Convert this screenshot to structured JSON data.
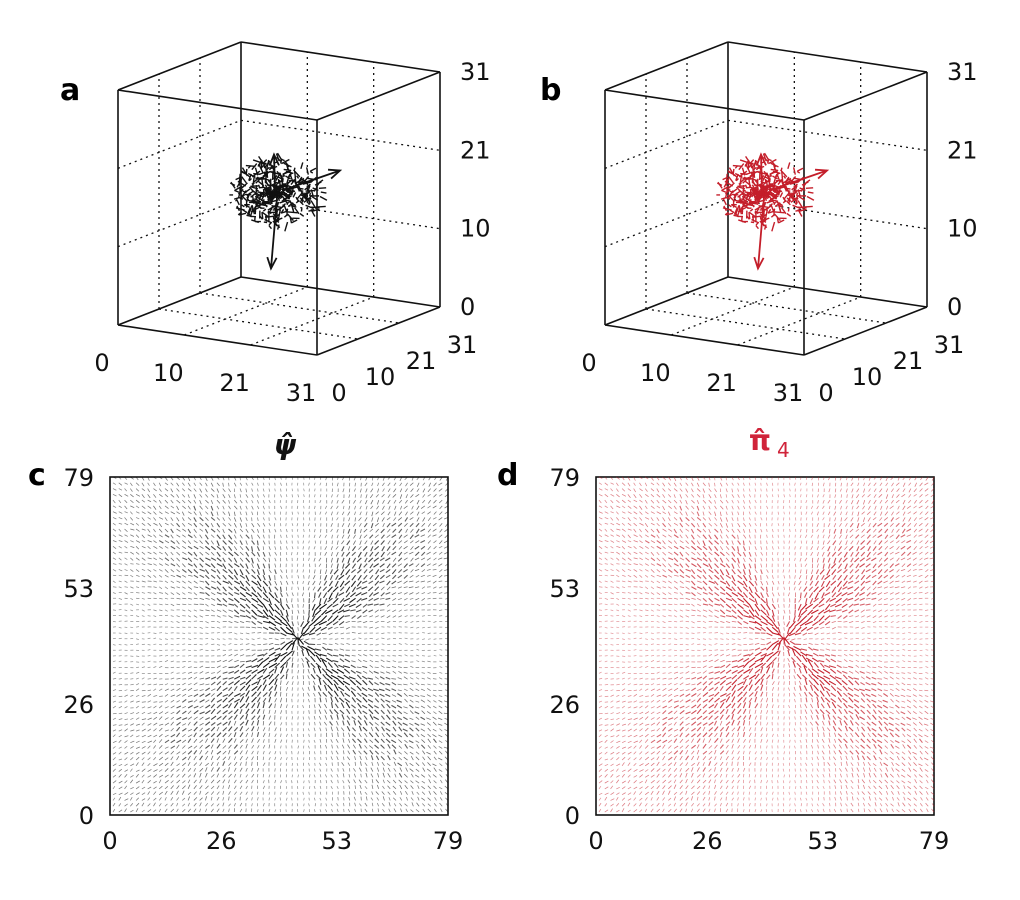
{
  "colors": {
    "black_field": "#111111",
    "red_field": "#c41e2a",
    "caption_red": "#d0243a"
  },
  "chart_data": [
    {
      "panel": "a",
      "type": "scatter",
      "projection": "3d",
      "series_color": "#111111",
      "axes": {
        "x": {
          "range": [
            0,
            31
          ],
          "ticks": [
            "0",
            "10",
            "21",
            "31"
          ]
        },
        "y": {
          "range": [
            0,
            31
          ],
          "ticks": [
            "0",
            "10",
            "21",
            "31"
          ]
        },
        "z": {
          "range": [
            0,
            31
          ],
          "ticks": [
            "0",
            "10",
            "21",
            "31"
          ]
        }
      },
      "grid": true,
      "data_description_values": {
        "cluster_center": [
          15.5,
          15.5,
          15.5
        ],
        "cluster_extent": 4
      }
    },
    {
      "panel": "b",
      "type": "scatter",
      "projection": "3d",
      "series_color": "#c41e2a",
      "axes": {
        "x": {
          "range": [
            0,
            31
          ],
          "ticks": [
            "0",
            "10",
            "21",
            "31"
          ]
        },
        "y": {
          "range": [
            0,
            31
          ],
          "ticks": [
            "0",
            "10",
            "21",
            "31"
          ]
        },
        "z": {
          "range": [
            0,
            31
          ],
          "ticks": [
            "0",
            "10",
            "21",
            "31"
          ]
        }
      },
      "grid": true,
      "data_description_values": {
        "cluster_center": [
          15.5,
          15.5,
          15.5
        ],
        "cluster_extent": 4
      }
    },
    {
      "panel": "c",
      "type": "scatter",
      "subtype": "vector-field",
      "series_color": "#111111",
      "xlim": [
        0,
        79
      ],
      "ylim": [
        0,
        79
      ],
      "xticks": [
        "0",
        "26",
        "53",
        "79"
      ],
      "yticks": [
        "0",
        "26",
        "53",
        "79"
      ],
      "center": [
        44,
        41
      ],
      "grid": false
    },
    {
      "panel": "d",
      "type": "scatter",
      "subtype": "vector-field",
      "series_color": "#c41e2a",
      "xlim": [
        0,
        79
      ],
      "ylim": [
        0,
        79
      ],
      "xticks": [
        "0",
        "26",
        "53",
        "79"
      ],
      "yticks": [
        "0",
        "26",
        "53",
        "79"
      ],
      "center": [
        44,
        41
      ],
      "grid": false
    }
  ],
  "labels": {
    "a": "a",
    "b": "b",
    "c": "c",
    "d": "d",
    "caption_psi": "ψ̂",
    "caption_pi": "π̂",
    "caption_pi_sub": "4"
  }
}
